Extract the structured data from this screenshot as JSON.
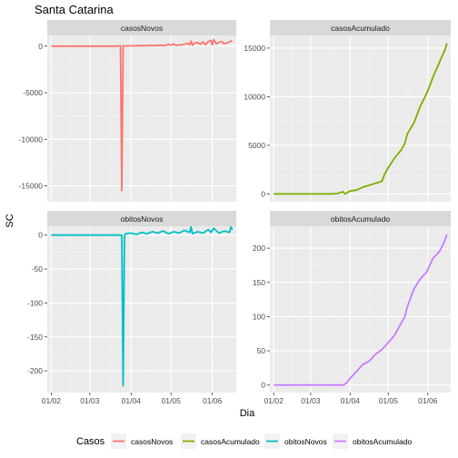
{
  "chart_data": {
    "type": "line",
    "title": "Santa Catarina",
    "xlabel": "Dia",
    "ylabel": "SC",
    "x_ticks": [
      "01/02",
      "01/03",
      "01/04",
      "01/05",
      "01/06"
    ],
    "x_tick_days": [
      0,
      29,
      60,
      90,
      121
    ],
    "x_range_days": [
      -3,
      139
    ],
    "legend": {
      "title": "Casos",
      "position": "bottom"
    },
    "panels": [
      {
        "name": "casosNovos",
        "color": "#F8766D",
        "ylim": [
          -16700,
          1150
        ],
        "y_ticks": [
          0,
          -5000,
          -10000,
          -15000
        ],
        "y_tick_labels": [
          "0",
          "-5000",
          "-10000",
          "-15000"
        ],
        "x_days": [
          0,
          10,
          20,
          30,
          40,
          50,
          51,
          52,
          53,
          54,
          55,
          58,
          62,
          66,
          70,
          74,
          78,
          82,
          86,
          88,
          90,
          92,
          94,
          96,
          98,
          100,
          102,
          104,
          105,
          106,
          108,
          110,
          112,
          114,
          116,
          118,
          120,
          121,
          122,
          124,
          126,
          128,
          130,
          132,
          134,
          136
        ],
        "values": [
          0,
          0,
          0,
          0,
          0,
          0,
          40,
          60,
          -15500,
          50,
          20,
          30,
          40,
          60,
          50,
          80,
          60,
          100,
          70,
          200,
          100,
          250,
          60,
          150,
          120,
          200,
          300,
          150,
          550,
          100,
          350,
          400,
          200,
          450,
          150,
          500,
          600,
          150,
          700,
          250,
          400,
          500,
          250,
          350,
          450,
          600
        ]
      },
      {
        "name": "casosAcumulado",
        "color": "#7CAE00",
        "ylim": [
          -800,
          16300
        ],
        "y_ticks": [
          0,
          5000,
          10000,
          15000
        ],
        "y_tick_labels": [
          "0",
          "5000",
          "10000",
          "15000"
        ],
        "x_days": [
          0,
          10,
          20,
          30,
          40,
          45,
          50,
          53,
          54,
          56,
          60,
          65,
          70,
          75,
          80,
          85,
          87,
          90,
          95,
          100,
          103,
          105,
          110,
          113,
          115,
          120,
          123,
          125,
          130,
          135,
          136
        ],
        "values": [
          0,
          0,
          0,
          0,
          0,
          0,
          50,
          150,
          250,
          0,
          300,
          400,
          700,
          900,
          1100,
          1300,
          2000,
          2700,
          3700,
          4500,
          5200,
          6200,
          7300,
          8300,
          9000,
          10300,
          11300,
          12000,
          13500,
          15000,
          15500
        ]
      },
      {
        "name": "obitosNovos",
        "color": "#00BFC4",
        "ylim": [
          -232,
          13
        ],
        "y_ticks": [
          0,
          -50,
          -100,
          -150,
          -200
        ],
        "y_tick_labels": [
          "0",
          "-50",
          "-100",
          "-150",
          "-200"
        ],
        "x_days": [
          0,
          10,
          20,
          30,
          40,
          50,
          53,
          54,
          55,
          56,
          60,
          64,
          68,
          72,
          76,
          80,
          84,
          88,
          92,
          96,
          100,
          104,
          105,
          106,
          110,
          114,
          118,
          120,
          122,
          126,
          130,
          134,
          135,
          136
        ],
        "values": [
          0,
          0,
          0,
          0,
          0,
          0,
          0,
          -222,
          0,
          2,
          3,
          1,
          4,
          2,
          5,
          3,
          6,
          2,
          5,
          3,
          7,
          4,
          12,
          2,
          5,
          3,
          8,
          4,
          10,
          3,
          6,
          4,
          12,
          8
        ]
      },
      {
        "name": "obitosAcumulado",
        "color": "#C77CFF",
        "ylim": [
          -11,
          232
        ],
        "y_ticks": [
          0,
          50,
          100,
          150,
          200
        ],
        "y_tick_labels": [
          "0",
          "50",
          "100",
          "150",
          "200"
        ],
        "x_days": [
          0,
          10,
          20,
          30,
          40,
          50,
          55,
          58,
          60,
          65,
          70,
          75,
          80,
          85,
          90,
          95,
          100,
          103,
          105,
          108,
          110,
          115,
          120,
          125,
          130,
          133,
          135,
          136
        ],
        "values": [
          0,
          0,
          0,
          0,
          0,
          0,
          0,
          5,
          10,
          20,
          30,
          35,
          45,
          52,
          62,
          73,
          90,
          100,
          115,
          130,
          140,
          155,
          165,
          185,
          195,
          205,
          215,
          220
        ]
      }
    ]
  }
}
